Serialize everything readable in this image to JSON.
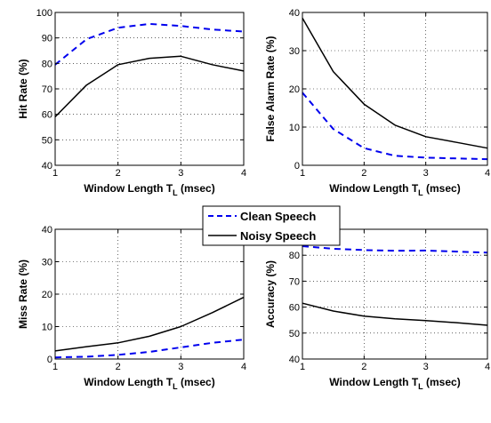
{
  "legend": {
    "entries": [
      {
        "label": "Clean Speech",
        "color": "#0000ee",
        "dash": true
      },
      {
        "label": "Noisy Speech",
        "color": "#000000",
        "dash": false
      }
    ]
  },
  "chart_data": [
    {
      "type": "line",
      "xlabel": "Window Length T_L (msec)",
      "ylabel": "Hit Rate (%)",
      "xlim": [
        1,
        4
      ],
      "ylim": [
        40,
        100
      ],
      "xticks": [
        1,
        2,
        3,
        4
      ],
      "yticks": [
        40,
        50,
        60,
        70,
        80,
        90,
        100
      ],
      "grid": true,
      "x": [
        1,
        1.5,
        2,
        2.5,
        3,
        3.5,
        4
      ],
      "series": [
        {
          "name": "Clean Speech",
          "values": [
            79.5,
            89.5,
            94,
            95.5,
            94.7,
            93.3,
            92.5
          ]
        },
        {
          "name": "Noisy Speech",
          "values": [
            59,
            71.5,
            79.5,
            82,
            82.8,
            79.5,
            77
          ]
        }
      ]
    },
    {
      "type": "line",
      "xlabel": "Window Length T_L (msec)",
      "ylabel": "False Alarm Rate (%)",
      "xlim": [
        1,
        4
      ],
      "ylim": [
        0,
        40
      ],
      "xticks": [
        1,
        2,
        3,
        4
      ],
      "yticks": [
        0,
        10,
        20,
        30,
        40
      ],
      "grid": true,
      "x": [
        1,
        1.5,
        2,
        2.5,
        3,
        3.5,
        4
      ],
      "series": [
        {
          "name": "Clean Speech",
          "values": [
            19,
            9.5,
            4.5,
            2.5,
            2,
            1.8,
            1.6
          ]
        },
        {
          "name": "Noisy Speech",
          "values": [
            38.5,
            24.5,
            16,
            10.5,
            7.5,
            6,
            4.5
          ]
        }
      ]
    },
    {
      "type": "line",
      "xlabel": "Window Length T_L (msec)",
      "ylabel": "Miss Rate (%)",
      "xlim": [
        1,
        4
      ],
      "ylim": [
        0,
        40
      ],
      "xticks": [
        1,
        2,
        3,
        4
      ],
      "yticks": [
        0,
        10,
        20,
        30,
        40
      ],
      "grid": true,
      "x": [
        1,
        1.5,
        2,
        2.5,
        3,
        3.5,
        4
      ],
      "series": [
        {
          "name": "Clean Speech",
          "values": [
            0.5,
            0.7,
            1.3,
            2.2,
            3.6,
            5,
            6
          ]
        },
        {
          "name": "Noisy Speech",
          "values": [
            2.5,
            3.8,
            5,
            7,
            10,
            14.3,
            19
          ]
        }
      ]
    },
    {
      "type": "line",
      "xlabel": "Window Length T_L (msec)",
      "ylabel": "Accuracy (%)",
      "xlim": [
        1,
        4
      ],
      "ylim": [
        40,
        90
      ],
      "xticks": [
        1,
        2,
        3,
        4
      ],
      "yticks": [
        40,
        50,
        60,
        70,
        80,
        90
      ],
      "grid": true,
      "x": [
        1,
        1.5,
        2,
        2.5,
        3,
        3.5,
        4
      ],
      "series": [
        {
          "name": "Clean Speech",
          "values": [
            83.5,
            82.5,
            82,
            81.7,
            81.8,
            81.4,
            81
          ]
        },
        {
          "name": "Noisy Speech",
          "values": [
            61.5,
            58.5,
            56.5,
            55.5,
            54.8,
            54,
            53
          ]
        }
      ]
    }
  ]
}
